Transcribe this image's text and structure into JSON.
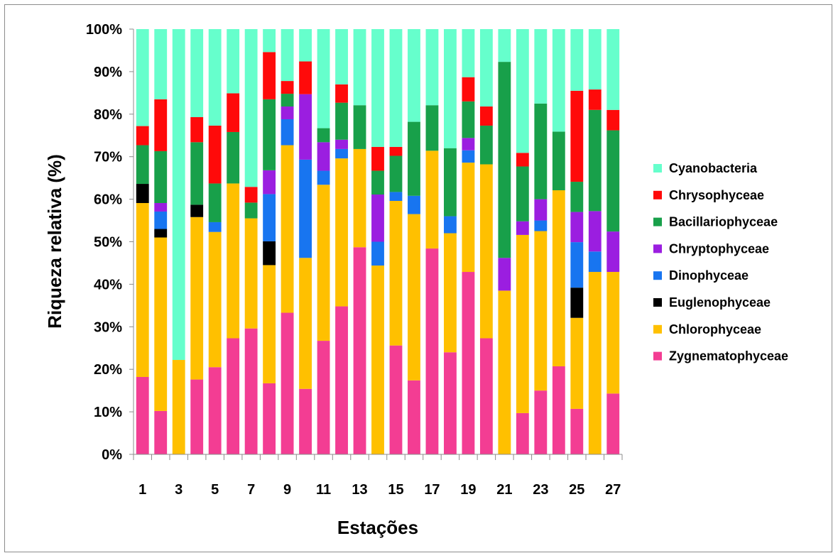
{
  "chart_data": {
    "type": "bar",
    "stacked": true,
    "normalized": true,
    "title": "",
    "xlabel": "Estações",
    "ylabel": "Riqueza relativa (%)",
    "ylim": [
      0,
      100
    ],
    "y_ticks": [
      "0%",
      "10%",
      "20%",
      "30%",
      "40%",
      "50%",
      "60%",
      "70%",
      "80%",
      "90%",
      "100%"
    ],
    "x_tick_labels": [
      "1",
      "3",
      "5",
      "7",
      "9",
      "11",
      "13",
      "15",
      "17",
      "19",
      "21",
      "23",
      "25",
      "27"
    ],
    "categories": [
      "1",
      "2",
      "3",
      "4",
      "5",
      "6",
      "7",
      "8",
      "9",
      "10",
      "11",
      "12",
      "13",
      "14",
      "15",
      "16",
      "17",
      "18",
      "19",
      "20",
      "21",
      "22",
      "23",
      "24",
      "25",
      "26",
      "27"
    ],
    "legend_position": "right",
    "grid": false,
    "series": [
      {
        "name": "Zygnematophyceae",
        "color": "#f33d93",
        "values": [
          18.2,
          10.2,
          0,
          17.6,
          20.5,
          27.3,
          29.6,
          16.7,
          33.3,
          15.4,
          26.7,
          34.8,
          48.7,
          0,
          25.6,
          17.4,
          48.4,
          24.0,
          42.9,
          27.3,
          0,
          9.7,
          15.0,
          20.7,
          10.7,
          0,
          14.3
        ]
      },
      {
        "name": "Chlorophyceae",
        "color": "#ffc000",
        "values": [
          40.9,
          40.8,
          22.2,
          38.2,
          31.8,
          36.4,
          25.9,
          27.8,
          39.4,
          30.8,
          36.7,
          34.8,
          23.1,
          44.4,
          34.0,
          39.1,
          23.0,
          28.0,
          25.7,
          40.9,
          38.5,
          41.9,
          37.5,
          41.4,
          21.4,
          42.9,
          28.6
        ]
      },
      {
        "name": "Euglenophyceae",
        "color": "#000000",
        "values": [
          4.5,
          2.0,
          0,
          2.9,
          0,
          0,
          0,
          5.6,
          0,
          0,
          0,
          0,
          0,
          0,
          0,
          0,
          0,
          0,
          0,
          0,
          0,
          0,
          0,
          0,
          7.1,
          0,
          0
        ]
      },
      {
        "name": "Dinophyceae",
        "color": "#1875f0",
        "values": [
          0,
          4.1,
          0,
          0,
          2.3,
          0,
          0,
          11.1,
          6.1,
          23.1,
          3.3,
          2.2,
          0,
          5.6,
          2.1,
          4.3,
          0,
          4.0,
          2.9,
          0,
          0,
          0,
          2.5,
          0,
          10.7,
          4.8,
          0
        ]
      },
      {
        "name": "Chryptophyceae",
        "color": "#9b1ee0",
        "values": [
          0,
          2.0,
          0,
          0,
          0,
          0,
          0,
          5.6,
          3.0,
          15.4,
          6.7,
          2.2,
          0,
          11.1,
          0,
          0,
          0,
          0,
          2.9,
          0,
          7.7,
          3.2,
          5.0,
          0,
          7.1,
          9.5,
          9.5
        ]
      },
      {
        "name": "Bacillariophyceae",
        "color": "#18a04a",
        "values": [
          9.1,
          12.2,
          0,
          14.7,
          9.1,
          12.1,
          3.7,
          16.7,
          3.0,
          0,
          3.3,
          8.7,
          10.3,
          5.6,
          8.5,
          17.4,
          10.7,
          16.0,
          8.6,
          9.1,
          46.1,
          12.9,
          22.5,
          13.8,
          7.1,
          23.8,
          23.8
        ]
      },
      {
        "name": "Chrysophyceae",
        "color": "#ff0a0a",
        "values": [
          4.5,
          12.2,
          0,
          5.9,
          13.6,
          9.1,
          3.7,
          11.1,
          3.0,
          7.7,
          0,
          4.3,
          0,
          5.6,
          2.1,
          0,
          0,
          0,
          5.7,
          4.5,
          0,
          3.2,
          0,
          0,
          21.4,
          4.8,
          4.8
        ]
      },
      {
        "name": "Cyanobacteria",
        "color": "#66ffcc",
        "values": [
          22.8,
          16.5,
          77.8,
          20.7,
          22.7,
          15.1,
          37.1,
          5.4,
          12.2,
          7.6,
          23.3,
          13.0,
          17.9,
          27.7,
          27.7,
          21.8,
          17.9,
          28.0,
          11.3,
          18.2,
          7.7,
          29.1,
          17.5,
          24.1,
          14.5,
          14.2,
          19.0
        ]
      }
    ]
  }
}
